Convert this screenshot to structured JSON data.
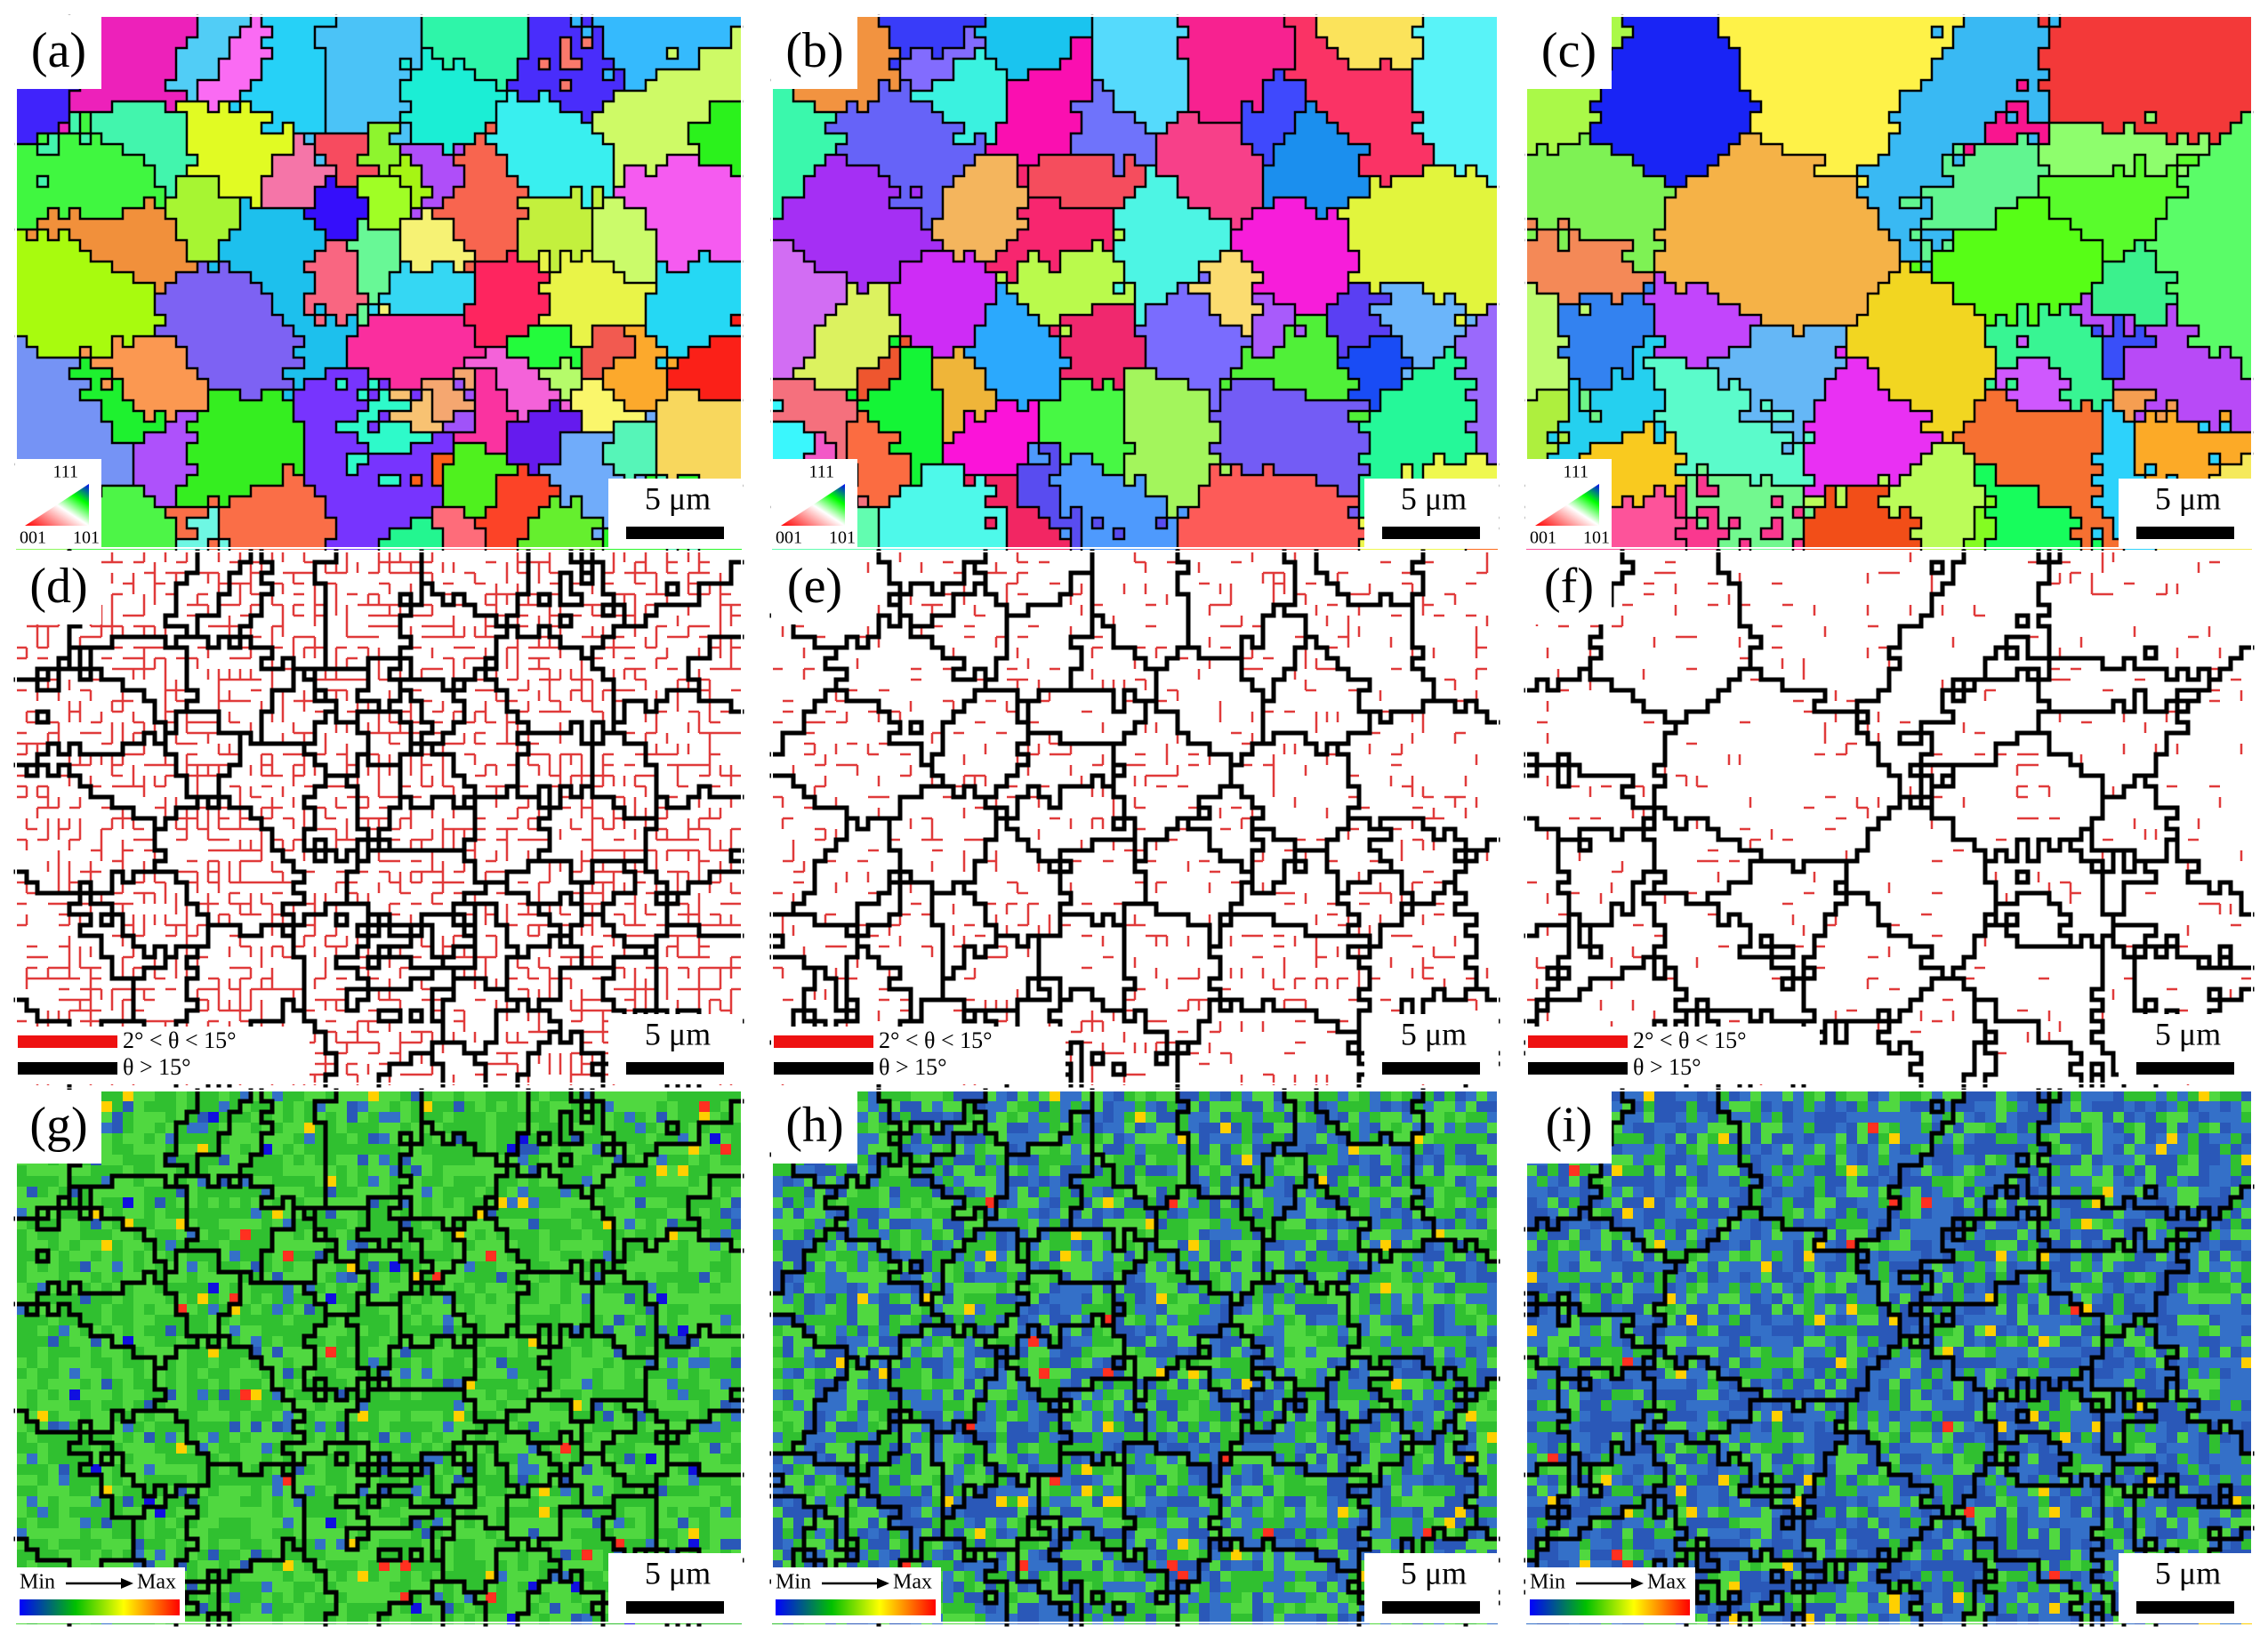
{
  "panels": [
    {
      "label": "(a)",
      "scale_bar": "5 μm",
      "legend": {
        "top": "111",
        "left": "001",
        "right": "101"
      }
    },
    {
      "label": "(b)",
      "scale_bar": "5 μm",
      "legend": {
        "top": "111",
        "left": "001",
        "right": "101"
      }
    },
    {
      "label": "(c)",
      "scale_bar": "5 μm",
      "legend": {
        "top": "111",
        "left": "001",
        "right": "101"
      }
    },
    {
      "label": "(d)",
      "scale_bar": "5 μm",
      "legend": {
        "low_angle": "2° < θ < 15°",
        "high_angle": "θ > 15°"
      }
    },
    {
      "label": "(e)",
      "scale_bar": "5 μm",
      "legend": {
        "low_angle": "2° < θ < 15°",
        "high_angle": "θ > 15°"
      }
    },
    {
      "label": "(f)",
      "scale_bar": "5 μm",
      "legend": {
        "low_angle": "2° < θ < 15°",
        "high_angle": "θ > 15°"
      }
    },
    {
      "label": "(g)",
      "scale_bar": "5 μm",
      "legend": {
        "min": "Min",
        "max": "Max"
      }
    },
    {
      "label": "(h)",
      "scale_bar": "5 μm",
      "legend": {
        "min": "Min",
        "max": "Max"
      }
    },
    {
      "label": "(i)",
      "scale_bar": "5 μm",
      "legend": {
        "min": "Min",
        "max": "Max"
      }
    }
  ]
}
